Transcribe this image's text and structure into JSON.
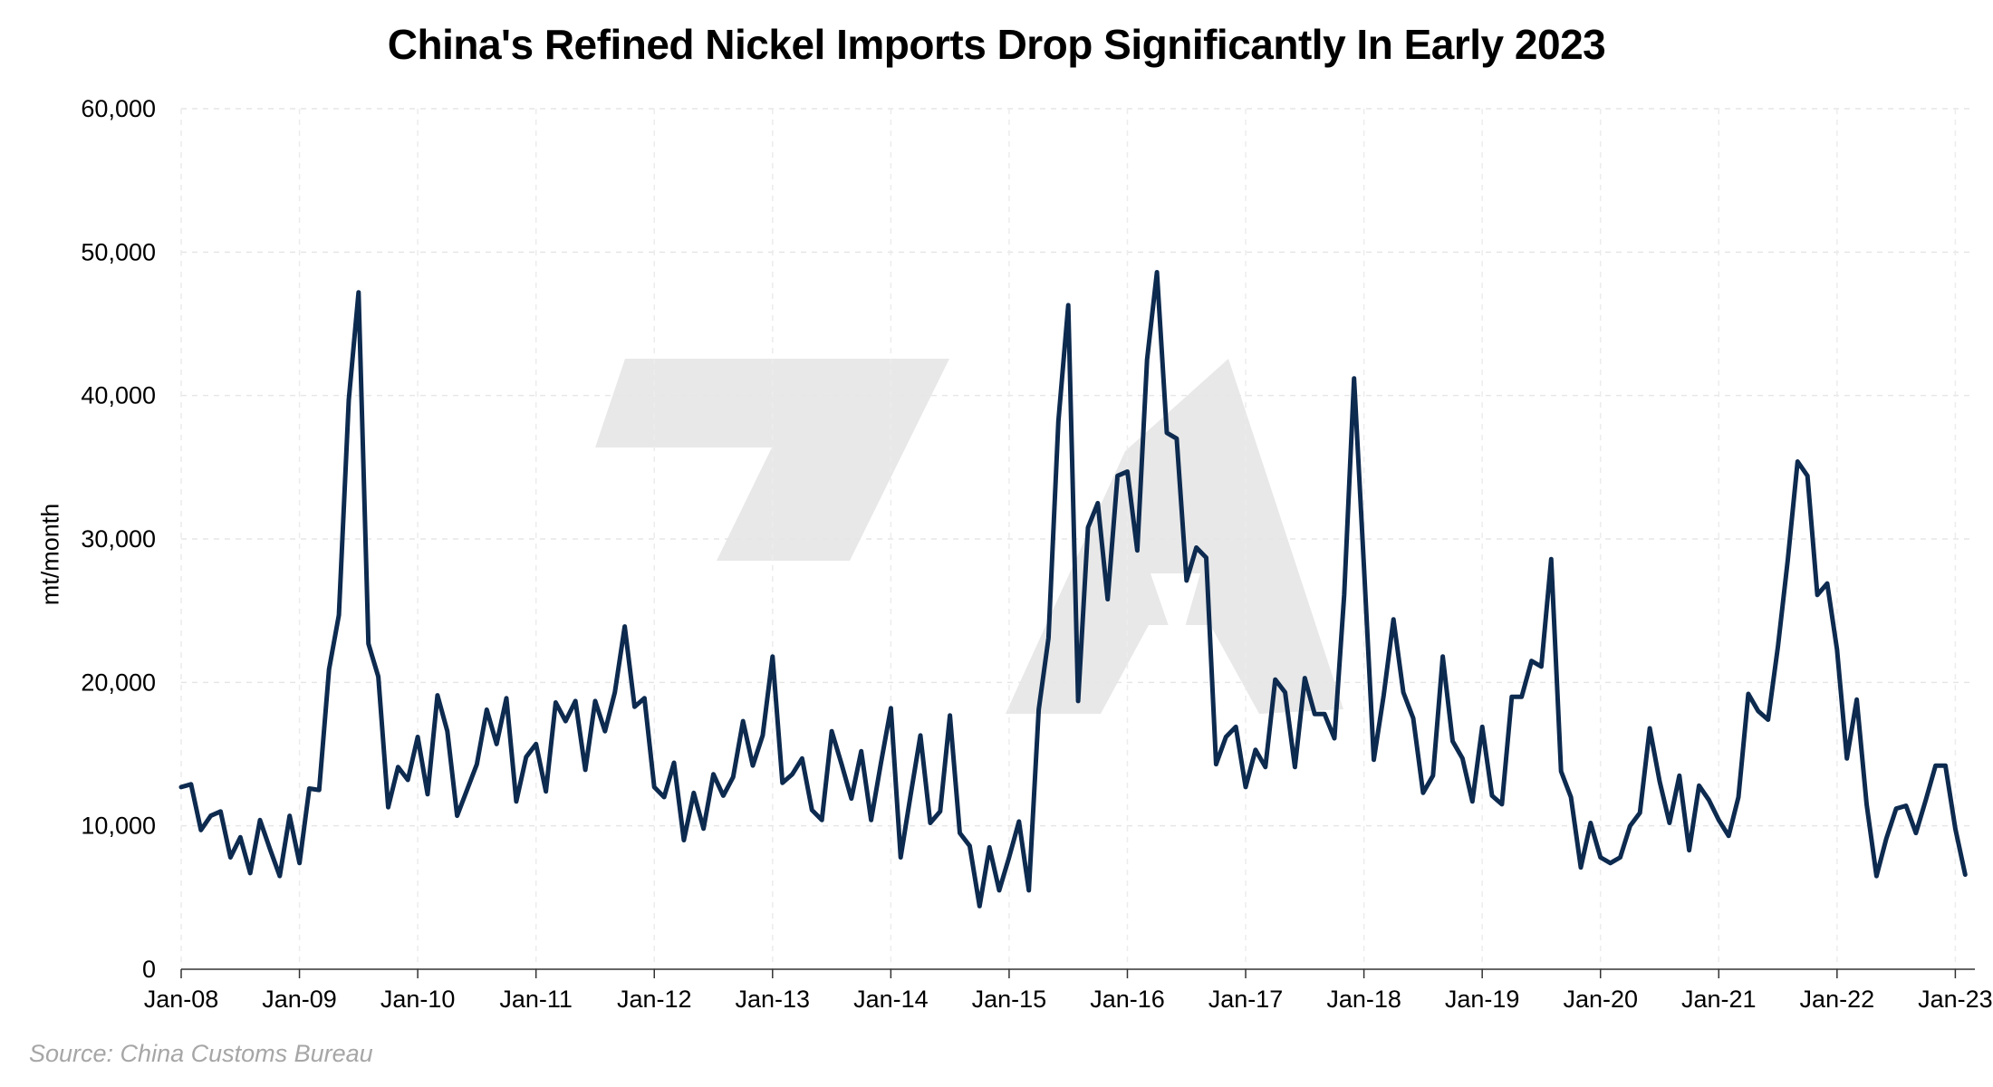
{
  "title": "China's Refined Nickel Imports Drop Significantly In Early 2023",
  "source": "Source: China Customs Bureau",
  "chart_data": {
    "type": "line",
    "title": "China's Refined Nickel Imports Drop Significantly In Early 2023",
    "ylabel": "mt/month",
    "xlabel": "",
    "ylim": [
      0,
      60000
    ],
    "y_ticks": [
      "0",
      "10,000",
      "20,000",
      "30,000",
      "40,000",
      "50,000",
      "60,000"
    ],
    "x_ticks": [
      "Jan-08",
      "Jan-09",
      "Jan-10",
      "Jan-11",
      "Jan-12",
      "Jan-13",
      "Jan-14",
      "Jan-15",
      "Jan-16",
      "Jan-17",
      "Jan-18",
      "Jan-19",
      "Jan-20",
      "Jan-21",
      "Jan-22",
      "Jan-23"
    ],
    "x_start": "Jan-08",
    "grid": true,
    "series_color": "#0d2a4f",
    "watermark": "stylized logo",
    "series": [
      {
        "values": [
          12700,
          12900,
          9700,
          10700,
          11000,
          7800,
          9200,
          6700,
          10400,
          8400,
          6500,
          10700,
          7400,
          12600,
          12500,
          20900,
          24700,
          39700,
          47200,
          22700,
          20400,
          11300,
          14100,
          13200,
          16200,
          12200,
          19100,
          16600,
          10700,
          12500,
          14300,
          18100,
          15700,
          18900,
          11700,
          14800,
          15700,
          12400,
          18600,
          17300,
          18700,
          13900,
          18700,
          16600,
          19300,
          23900,
          18300,
          18900,
          12700,
          12000,
          14400,
          9000,
          12300,
          9800,
          13600,
          12100,
          13400,
          17300,
          14200,
          16300,
          21800,
          13000,
          13600,
          14700,
          11100,
          10400,
          16600,
          14300,
          11900,
          15200,
          10400,
          14400,
          18200,
          7800,
          12100,
          16300,
          10200,
          11000,
          17700,
          9500,
          8600,
          4400,
          8500,
          5500,
          7800,
          10300,
          5500,
          18100,
          23100,
          38200,
          46300,
          18700,
          30800,
          32500,
          25800,
          34400,
          34700,
          29200,
          42500,
          48600,
          37400,
          37000,
          27100,
          29400,
          28700,
          14300,
          16200,
          16900,
          12700,
          15300,
          14100,
          20200,
          19300,
          14100,
          20300,
          17800,
          17800,
          16100,
          26100,
          41200,
          28100,
          14600,
          19100,
          24400,
          19300,
          17500,
          12300,
          13500,
          21800,
          15900,
          14700,
          11700,
          16900,
          12100,
          11500,
          19000,
          19000,
          21500,
          21100,
          28600,
          13800,
          12000,
          7100,
          10200,
          7800,
          7400,
          7800,
          10000,
          10900,
          16800,
          13100,
          10200,
          13500,
          8300,
          12800,
          11800,
          10400,
          9300,
          12000,
          19200,
          18000,
          17400,
          22500,
          28500,
          35400,
          34400,
          26100,
          26900,
          22300,
          14700,
          18800,
          11500,
          6500,
          9100,
          11200,
          11400,
          9500,
          11800,
          14200,
          14200,
          9800,
          6600
        ]
      }
    ]
  }
}
